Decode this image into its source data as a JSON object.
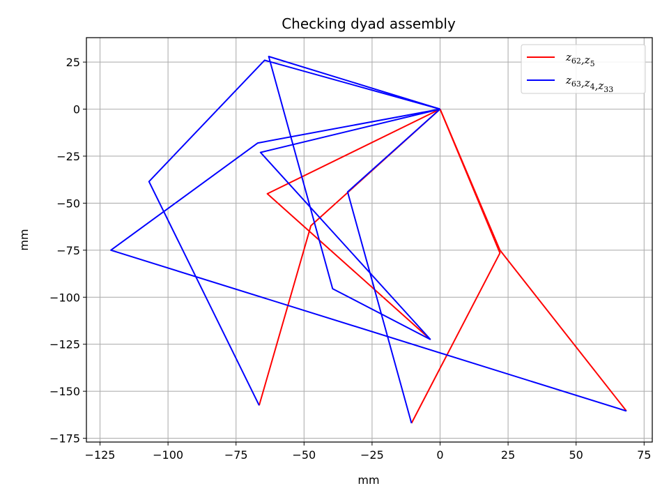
{
  "chart_data": {
    "type": "line",
    "title": "Checking dyad assembly",
    "xlabel": "mm",
    "ylabel": "mm",
    "xlim": [
      -130,
      78
    ],
    "ylim": [
      -177,
      38
    ],
    "xticks": [
      -125,
      -100,
      -75,
      -50,
      -25,
      0,
      25,
      50,
      75
    ],
    "yticks": [
      -175,
      -150,
      -125,
      -100,
      -75,
      -50,
      -25,
      0,
      25
    ],
    "grid": true,
    "legend_position": "top-right",
    "series": [
      {
        "name": "z62,z5",
        "legend_parts": [
          [
            "z",
            "62"
          ],
          [
            "z",
            "5"
          ]
        ],
        "color": "#ff0000",
        "segments": [
          {
            "x": [
              0,
              -47.5,
              -66.5
            ],
            "y": [
              0,
              -62,
              -157.5
            ]
          },
          {
            "x": [
              0,
              22,
              68.5
            ],
            "y": [
              0,
              -75,
              -160.5
            ]
          },
          {
            "x": [
              0,
              -63.5,
              -3.5
            ],
            "y": [
              0,
              -45,
              -122.5
            ]
          },
          {
            "x": [
              0,
              22,
              -10.5
            ],
            "y": [
              0,
              -76.5,
              -167
            ]
          }
        ]
      },
      {
        "name": "z63,z4,z33",
        "legend_parts": [
          [
            "z",
            "63"
          ],
          [
            "z",
            "4"
          ],
          [
            "z",
            "33"
          ]
        ],
        "color": "#0000ff",
        "segments": [
          {
            "x": [
              0,
              -64.5,
              -107,
              -66.5
            ],
            "y": [
              0,
              26,
              -38.5,
              -157.5
            ]
          },
          {
            "x": [
              0,
              -67,
              -121,
              68.5
            ],
            "y": [
              0,
              -18,
              -75,
              -160.5
            ]
          },
          {
            "x": [
              0,
              -66,
              -3.5
            ],
            "y": [
              0,
              -23,
              -122.5
            ]
          },
          {
            "x": [
              0,
              -63,
              -39.5,
              -3.5
            ],
            "y": [
              0,
              28,
              -95.5,
              -122.5
            ]
          },
          {
            "x": [
              0,
              -34,
              -10.5
            ],
            "y": [
              0,
              -44,
              -167
            ]
          }
        ]
      }
    ]
  }
}
